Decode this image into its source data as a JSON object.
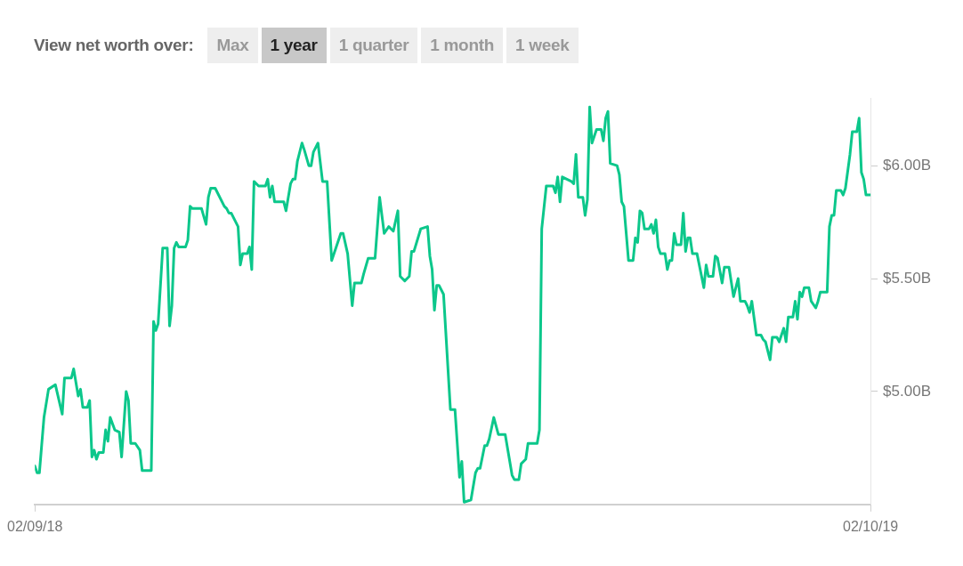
{
  "chart_data": {
    "type": "line",
    "annotations": [
      "View net worth over:",
      "Max",
      "1 year",
      "1 quarter",
      "1 month",
      "1 week"
    ],
    "x": [
      "2018-02-09",
      "2018-02-10",
      "2018-02-11",
      "2018-02-13",
      "2018-02-15",
      "2018-02-18",
      "2018-02-21",
      "2018-02-22",
      "2018-02-25",
      "2018-02-26",
      "2018-02-28",
      "2018-03-01",
      "2018-03-02",
      "2018-03-04",
      "2018-03-05",
      "2018-03-06",
      "2018-03-07",
      "2018-03-08",
      "2018-03-09",
      "2018-03-11",
      "2018-03-12",
      "2018-03-13",
      "2018-03-14",
      "2018-03-16",
      "2018-03-18",
      "2018-03-19",
      "2018-03-21",
      "2018-03-22",
      "2018-03-23",
      "2018-03-25",
      "2018-03-27",
      "2018-03-28",
      "2018-04-01",
      "2018-04-02",
      "2018-04-03",
      "2018-04-04",
      "2018-04-06",
      "2018-04-08",
      "2018-04-09",
      "2018-04-10",
      "2018-04-11",
      "2018-04-12",
      "2018-04-13",
      "2018-04-16",
      "2018-04-17",
      "2018-04-18",
      "2018-04-19",
      "2018-04-23",
      "2018-04-25",
      "2018-04-26",
      "2018-04-27",
      "2018-04-29",
      "2018-05-03",
      "2018-05-04",
      "2018-05-05",
      "2018-05-06",
      "2018-05-09",
      "2018-05-10",
      "2018-05-11",
      "2018-05-13",
      "2018-05-14",
      "2018-05-15",
      "2018-05-16",
      "2018-05-18",
      "2018-05-21",
      "2018-05-22",
      "2018-05-23",
      "2018-05-24",
      "2018-05-25",
      "2018-05-29",
      "2018-05-30",
      "2018-06-01",
      "2018-06-02",
      "2018-06-03",
      "2018-06-04",
      "2018-06-06",
      "2018-06-07",
      "2018-06-09",
      "2018-06-10",
      "2018-06-11",
      "2018-06-13",
      "2018-06-15",
      "2018-06-17",
      "2018-06-19",
      "2018-06-21",
      "2018-06-23",
      "2018-06-24",
      "2018-06-26",
      "2018-06-28",
      "2018-06-29",
      "2018-07-02",
      "2018-07-03",
      "2018-07-05",
      "2018-07-08",
      "2018-07-10",
      "2018-07-12",
      "2018-07-14",
      "2018-07-16",
      "2018-07-18",
      "2018-07-19",
      "2018-07-21",
      "2018-07-23",
      "2018-07-24",
      "2018-07-25",
      "2018-07-28",
      "2018-07-31",
      "2018-08-01",
      "2018-08-02",
      "2018-08-03",
      "2018-08-04",
      "2018-08-05",
      "2018-08-07",
      "2018-08-10",
      "2018-08-12",
      "2018-08-14",
      "2018-08-15",
      "2018-08-16",
      "2018-08-19",
      "2018-08-21",
      "2018-08-22",
      "2018-08-23",
      "2018-08-25",
      "2018-08-26",
      "2018-08-27",
      "2018-08-29",
      "2018-08-31",
      "2018-09-03",
      "2018-09-06",
      "2018-09-07",
      "2018-09-09",
      "2018-09-10",
      "2018-09-12",
      "2018-09-13",
      "2018-09-17",
      "2018-09-18",
      "2018-09-19",
      "2018-09-21",
      "2018-09-24",
      "2018-09-25",
      "2018-09-26",
      "2018-09-27",
      "2018-09-28",
      "2018-10-02",
      "2018-10-03",
      "2018-10-04",
      "2018-10-05",
      "2018-10-07",
      "2018-10-08",
      "2018-10-09",
      "2018-10-10",
      "2018-10-11",
      "2018-10-13",
      "2018-10-15",
      "2018-10-16",
      "2018-10-17",
      "2018-10-18",
      "2018-10-19",
      "2018-10-22",
      "2018-10-23",
      "2018-10-24",
      "2018-10-25",
      "2018-10-27",
      "2018-10-29",
      "2018-10-30",
      "2018-10-31",
      "2018-11-01",
      "2018-11-02",
      "2018-11-03",
      "2018-11-05",
      "2018-11-06",
      "2018-11-07",
      "2018-11-08",
      "2018-11-09",
      "2018-11-10",
      "2018-11-12",
      "2018-11-13",
      "2018-11-14",
      "2018-11-15",
      "2018-11-16",
      "2018-11-17",
      "2018-11-19",
      "2018-11-20",
      "2018-11-21",
      "2018-11-22",
      "2018-11-23",
      "2018-11-24",
      "2018-11-26",
      "2018-11-28",
      "2018-11-29",
      "2018-11-30",
      "2018-12-01",
      "2018-12-03",
      "2018-12-04",
      "2018-12-05",
      "2018-12-07",
      "2018-12-08",
      "2018-12-10",
      "2018-12-12",
      "2018-12-14",
      "2018-12-15",
      "2018-12-17",
      "2018-12-18",
      "2018-12-19",
      "2018-12-20",
      "2018-12-22",
      "2018-12-24",
      "2018-12-25",
      "2018-12-26",
      "2018-12-28",
      "2018-12-29",
      "2018-12-31",
      "2019-01-01",
      "2019-01-03",
      "2019-01-04",
      "2019-01-05",
      "2019-01-07",
      "2019-01-08",
      "2019-01-09",
      "2019-01-10",
      "2019-01-11",
      "2019-01-12",
      "2019-01-14",
      "2019-01-15",
      "2019-01-17",
      "2019-01-18",
      "2019-01-19",
      "2019-01-22",
      "2019-01-23",
      "2019-01-24",
      "2019-01-25",
      "2019-01-26",
      "2019-01-28",
      "2019-01-29",
      "2019-01-30",
      "2019-02-01",
      "2019-02-02",
      "2019-02-04",
      "2019-02-05",
      "2019-02-06",
      "2019-02-07",
      "2019-02-08",
      "2019-02-10"
    ],
    "series": [
      {
        "color": "#0cc78b",
        "values": [
          4.67,
          4.64,
          4.64,
          4.885,
          5.01,
          5.03,
          4.9,
          5.06,
          5.06,
          5.1,
          4.98,
          5.01,
          4.93,
          4.93,
          4.96,
          4.71,
          4.74,
          4.7,
          4.73,
          4.73,
          4.83,
          4.78,
          4.885,
          4.83,
          4.82,
          4.71,
          5.0,
          4.96,
          4.77,
          4.77,
          4.74,
          4.65,
          4.65,
          5.31,
          5.27,
          5.3,
          5.635,
          5.635,
          5.29,
          5.38,
          5.635,
          5.66,
          5.64,
          5.64,
          5.67,
          5.82,
          5.81,
          5.81,
          5.74,
          5.86,
          5.9,
          5.9,
          5.82,
          5.81,
          5.79,
          5.79,
          5.73,
          5.56,
          5.61,
          5.61,
          5.64,
          5.54,
          5.93,
          5.91,
          5.91,
          5.94,
          5.86,
          5.91,
          5.84,
          5.84,
          5.8,
          5.92,
          5.94,
          5.94,
          6.02,
          6.1,
          6.07,
          6.0,
          6.0,
          6.06,
          6.1,
          5.93,
          5.93,
          5.58,
          5.64,
          5.7,
          5.7,
          5.61,
          5.38,
          5.48,
          5.48,
          5.52,
          5.59,
          5.59,
          5.86,
          5.7,
          5.73,
          5.71,
          5.8,
          5.51,
          5.49,
          5.51,
          5.62,
          5.62,
          5.72,
          5.73,
          5.6,
          5.54,
          5.36,
          5.47,
          5.47,
          5.43,
          4.92,
          4.92,
          4.62,
          4.69,
          4.51,
          4.52,
          4.64,
          4.66,
          4.66,
          4.76,
          4.76,
          4.79,
          4.885,
          4.81,
          4.81,
          4.63,
          4.61,
          4.61,
          4.68,
          4.7,
          4.77,
          4.77,
          4.83,
          5.72,
          5.91,
          5.91,
          5.88,
          5.95,
          5.84,
          5.95,
          5.93,
          5.92,
          6.05,
          5.86,
          5.86,
          5.78,
          5.85,
          6.26,
          6.1,
          6.16,
          6.16,
          6.11,
          6.21,
          6.24,
          6.01,
          6.0,
          5.96,
          5.84,
          5.82,
          5.58,
          5.58,
          5.68,
          5.66,
          5.8,
          5.79,
          5.72,
          5.72,
          5.74,
          5.7,
          5.76,
          5.64,
          5.61,
          5.61,
          5.54,
          5.58,
          5.58,
          5.7,
          5.65,
          5.65,
          5.79,
          5.62,
          5.68,
          5.68,
          5.61,
          5.61,
          5.51,
          5.46,
          5.56,
          5.51,
          5.51,
          5.6,
          5.59,
          5.48,
          5.55,
          5.55,
          5.42,
          5.5,
          5.4,
          5.4,
          5.38,
          5.35,
          5.4,
          5.25,
          5.25,
          5.23,
          5.22,
          5.14,
          5.24,
          5.24,
          5.22,
          5.28,
          5.22,
          5.33,
          5.33,
          5.4,
          5.32,
          5.44,
          5.42,
          5.46,
          5.46,
          5.4,
          5.37,
          5.4,
          5.44,
          5.44,
          5.73,
          5.78,
          5.78,
          5.89,
          5.89,
          5.87,
          5.9,
          6.05,
          6.15,
          6.15,
          6.21,
          5.97,
          5.94,
          5.87,
          5.87
        ]
      }
    ],
    "xlim": [
      "2018-02-09",
      "2019-02-10"
    ],
    "xticks": [
      {
        "value": "2018-02-09",
        "label": "02/09/18"
      },
      {
        "value": "2019-02-10",
        "label": "02/10/19"
      }
    ],
    "ylim": [
      4.5,
      6.3
    ],
    "yticks": [
      {
        "value": 5.0,
        "label": "$5.00B"
      },
      {
        "value": 5.5,
        "label": "$5.50B"
      },
      {
        "value": 6.0,
        "label": "$6.00B"
      }
    ],
    "grid": false,
    "legend": false,
    "marker": "none",
    "line_style": "solid"
  }
}
